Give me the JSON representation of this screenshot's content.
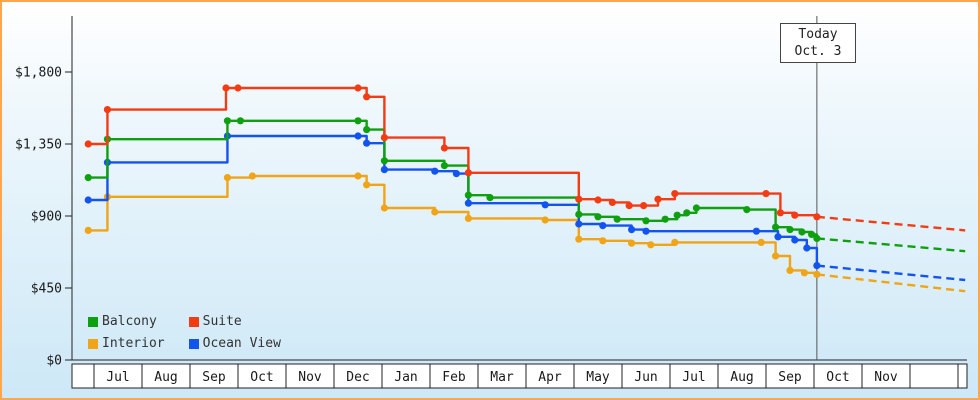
{
  "window": {
    "border_color": "#ffa64d"
  },
  "today_marker": {
    "line1": "Today",
    "line2": "Oct. 3"
  },
  "legend": [
    {
      "label": "Balcony",
      "color": "#0fa00f"
    },
    {
      "label": "Suite",
      "color": "#f33b14"
    },
    {
      "label": "Interior",
      "color": "#f0a418"
    },
    {
      "label": "Ocean View",
      "color": "#1353ee"
    }
  ],
  "y_axis": {
    "ticks": [
      {
        "label": "$1,800",
        "value": 1800
      },
      {
        "label": "$1,350",
        "value": 1350
      },
      {
        "label": "$900",
        "value": 900
      },
      {
        "label": "$450",
        "value": 450
      },
      {
        "label": "$0",
        "value": 0
      }
    ]
  },
  "x_axis": {
    "months": [
      "Jul",
      "Aug",
      "Sep",
      "Oct",
      "Nov",
      "Dec",
      "Jan",
      "Feb",
      "Mar",
      "Apr",
      "May",
      "Jun",
      "Jul",
      "Aug",
      "Sep",
      "Oct",
      "Nov"
    ]
  },
  "chart_data": {
    "type": "line",
    "step": true,
    "title": "",
    "xlabel": "",
    "ylabel": "",
    "x_unit": "months since first July (Jul = 0)",
    "ylim": [
      0,
      1800
    ],
    "grid": false,
    "legend_position": "bottom-left",
    "today_t": 15.06,
    "today_label": "Today Oct. 3",
    "series": [
      {
        "name": "Interior",
        "color": "#f0a418",
        "points": [
          [
            -0.12,
            810
          ],
          [
            0.28,
            1020
          ],
          [
            2.78,
            1140
          ],
          [
            3.3,
            1150
          ],
          [
            5.5,
            1150
          ],
          [
            5.68,
            1095
          ],
          [
            6.05,
            950
          ],
          [
            7.1,
            925
          ],
          [
            7.8,
            885
          ],
          [
            9.4,
            875
          ],
          [
            10.1,
            755
          ],
          [
            10.6,
            745
          ],
          [
            11.2,
            730
          ],
          [
            11.6,
            720
          ],
          [
            12.1,
            735
          ],
          [
            13.9,
            735
          ],
          [
            14.2,
            650
          ],
          [
            14.5,
            560
          ],
          [
            14.8,
            545
          ],
          [
            15.06,
            535
          ]
        ],
        "projection": [
          [
            15.06,
            535
          ],
          [
            18.15,
            430
          ]
        ]
      },
      {
        "name": "Ocean View",
        "color": "#1353ee",
        "points": [
          [
            -0.12,
            1000
          ],
          [
            0.28,
            1235
          ],
          [
            2.78,
            1400
          ],
          [
            5.5,
            1400
          ],
          [
            5.68,
            1355
          ],
          [
            6.05,
            1190
          ],
          [
            7.1,
            1180
          ],
          [
            7.55,
            1165
          ],
          [
            7.8,
            980
          ],
          [
            9.4,
            970
          ],
          [
            10.1,
            850
          ],
          [
            10.6,
            840
          ],
          [
            11.2,
            815
          ],
          [
            11.5,
            805
          ],
          [
            13.8,
            805
          ],
          [
            14.25,
            770
          ],
          [
            14.6,
            750
          ],
          [
            14.85,
            700
          ],
          [
            15.06,
            590
          ]
        ],
        "projection": [
          [
            15.06,
            590
          ],
          [
            18.15,
            500
          ]
        ]
      },
      {
        "name": "Balcony",
        "color": "#0fa00f",
        "points": [
          [
            -0.12,
            1140
          ],
          [
            0.28,
            1380
          ],
          [
            2.78,
            1495
          ],
          [
            3.05,
            1495
          ],
          [
            5.5,
            1495
          ],
          [
            5.68,
            1440
          ],
          [
            6.05,
            1245
          ],
          [
            7.3,
            1215
          ],
          [
            7.8,
            1030
          ],
          [
            8.25,
            1015
          ],
          [
            10.1,
            910
          ],
          [
            10.5,
            895
          ],
          [
            10.9,
            880
          ],
          [
            11.5,
            870
          ],
          [
            11.9,
            880
          ],
          [
            12.15,
            905
          ],
          [
            12.35,
            920
          ],
          [
            12.55,
            950
          ],
          [
            13.6,
            940
          ],
          [
            14.2,
            830
          ],
          [
            14.5,
            815
          ],
          [
            14.75,
            800
          ],
          [
            14.95,
            785
          ],
          [
            15.06,
            760
          ]
        ],
        "projection": [
          [
            15.06,
            760
          ],
          [
            18.15,
            680
          ]
        ]
      },
      {
        "name": "Suite",
        "color": "#f33b14",
        "points": [
          [
            -0.12,
            1350
          ],
          [
            0.28,
            1565
          ],
          [
            2.75,
            1700
          ],
          [
            3.0,
            1700
          ],
          [
            5.5,
            1700
          ],
          [
            5.68,
            1645
          ],
          [
            6.05,
            1390
          ],
          [
            7.3,
            1325
          ],
          [
            7.8,
            1170
          ],
          [
            10.1,
            1005
          ],
          [
            10.5,
            1000
          ],
          [
            10.8,
            985
          ],
          [
            11.15,
            965
          ],
          [
            11.45,
            965
          ],
          [
            11.75,
            1005
          ],
          [
            12.1,
            1040
          ],
          [
            14.0,
            1040
          ],
          [
            14.3,
            920
          ],
          [
            14.6,
            905
          ],
          [
            15.06,
            895
          ]
        ],
        "projection": [
          [
            15.06,
            895
          ],
          [
            18.15,
            810
          ]
        ]
      }
    ]
  }
}
